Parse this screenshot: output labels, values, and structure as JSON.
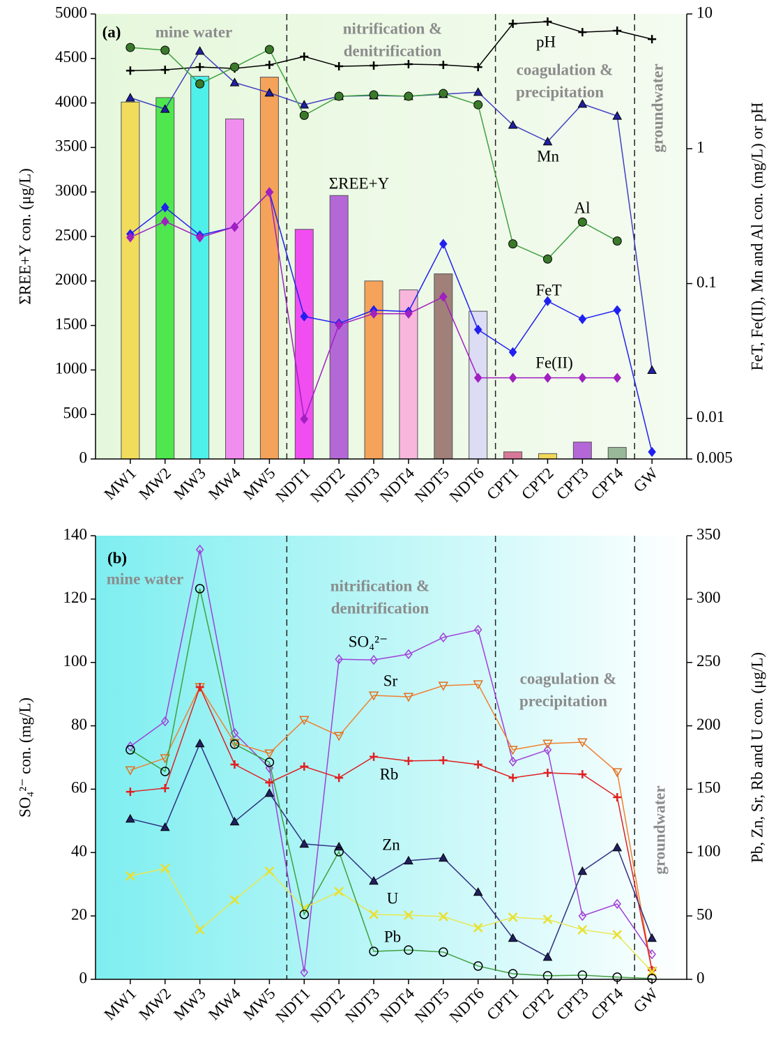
{
  "chart_data": [
    {
      "type": "bar",
      "panel_label": "(a)",
      "categories": [
        "MW1",
        "MW2",
        "MW3",
        "MW4",
        "MW5",
        "NDT1",
        "NDT2",
        "NDT3",
        "NDT4",
        "NDT5",
        "NDT6",
        "CPT1",
        "CPT2",
        "CPT3",
        "CPT4",
        "GW"
      ],
      "ylabel": "ΣREE+Y con. (μg/L)",
      "y2label": "FeT, Fe(II), Mn and Al con. (mg/L) or pH",
      "ylim": [
        0,
        5000
      ],
      "yticks": [
        0,
        500,
        1000,
        1500,
        2000,
        2500,
        3000,
        3500,
        4000,
        4500,
        5000
      ],
      "y2lim": [
        0.005,
        10
      ],
      "y2ticks": [
        0.005,
        0.01,
        0.1,
        1,
        10
      ],
      "y2scale": "log",
      "bars": {
        "name": "ΣREE+Y",
        "values": [
          4010,
          4060,
          4300,
          3820,
          4290,
          2580,
          2960,
          2000,
          1900,
          2080,
          1660,
          80,
          60,
          190,
          130,
          null
        ],
        "colors": [
          "#f2dc5c",
          "#4ee84e",
          "#4ef0ea",
          "#f08ef0",
          "#f5a35a",
          "#f04ef0",
          "#b468d8",
          "#f5a35a",
          "#f8b6dc",
          "#a08078",
          "#dcdcf4",
          "#d87898",
          "#f2d85a",
          "#b468d8",
          "#98b898",
          null
        ]
      },
      "series": [
        {
          "name": "pH",
          "color": "#000000",
          "marker": "plus",
          "marker_color": "#000000",
          "axis": "y2",
          "values": [
            3.8,
            3.85,
            4.04,
            3.94,
            4.19,
            4.83,
            4.09,
            4.14,
            4.24,
            4.19,
            4.04,
            8.46,
            8.77,
            7.33,
            7.51,
            6.5
          ]
        },
        {
          "name": "Mn",
          "color": "#4040c0",
          "marker": "triangle",
          "marker_color": "#2020a0",
          "axis": "y2",
          "values": [
            2.39,
            1.97,
            5.31,
            3.1,
            2.6,
            2.12,
            2.45,
            2.48,
            2.45,
            2.54,
            2.63,
            1.5,
            1.13,
            2.15,
            1.75,
            0.0228
          ]
        },
        {
          "name": "Al",
          "color": "#40a040",
          "marker": "circle",
          "marker_color": "#3a7a2a",
          "axis": "y2",
          "values": [
            5.64,
            5.38,
            3.03,
            4.04,
            5.45,
            1.77,
            2.45,
            2.51,
            2.45,
            2.57,
            2.12,
            0.197,
            0.152,
            0.286,
            0.207,
            null
          ]
        },
        {
          "name": "FeT",
          "color": "#2020f0",
          "marker": "diamond",
          "marker_color": "#2020f0",
          "axis": "y2",
          "values": [
            0.233,
            0.367,
            0.228,
            0.263,
            0.477,
            0.057,
            0.0507,
            0.0635,
            0.062,
            0.197,
            0.0455,
            0.031,
            0.0741,
            0.0545,
            0.0635,
            0.00564
          ]
        },
        {
          "name": "Fe(II)",
          "color": "#a020c0",
          "marker": "diamond",
          "marker_color": "#a020c0",
          "axis": "y2",
          "values": [
            0.22,
            0.289,
            0.22,
            0.263,
            0.477,
            0.00989,
            0.0494,
            0.0598,
            0.0598,
            0.0798,
            0.02,
            0.02,
            0.02,
            0.02,
            0.02,
            null
          ]
        }
      ],
      "regions": [
        [
          "mine water"
        ],
        [
          "nitrification &",
          "denitrification"
        ],
        [
          "coagulation &",
          "precipitation"
        ],
        [
          "groundwater"
        ]
      ]
    },
    {
      "type": "line",
      "panel_label": "(b)",
      "categories": [
        "MW1",
        "MW2",
        "MW3",
        "MW4",
        "MW5",
        "NDT1",
        "NDT2",
        "NDT3",
        "NDT4",
        "NDT5",
        "NDT6",
        "CPT1",
        "CPT2",
        "CPT3",
        "CPT4",
        "GW"
      ],
      "ylabel": "SO₄²⁻ con. (mg/L)",
      "y2label": "Pb, Zn, Sr, Rb and U con. (μg/L)",
      "ylim": [
        0,
        140
      ],
      "yticks": [
        0,
        20,
        40,
        60,
        80,
        100,
        120,
        140
      ],
      "y2lim": [
        0,
        350
      ],
      "y2ticks": [
        0,
        50,
        100,
        150,
        200,
        250,
        300,
        350
      ],
      "series": [
        {
          "name": "SO₄²⁻",
          "color": "#a040d8",
          "marker": "diamond",
          "marker_color": "#a040d8",
          "axis": "y",
          "values": [
            73.5,
            81.4,
            135.6,
            77.7,
            66.7,
            2.2,
            101,
            100.8,
            102.6,
            107.9,
            110.3,
            68.7,
            72.4,
            20,
            23.8,
            7.9
          ]
        },
        {
          "name": "Sr",
          "color": "#f08030",
          "marker": "triangle-down",
          "marker_color": "#e07020",
          "axis": "y2",
          "values": [
            165,
            174.5,
            230.6,
            186.6,
            178.3,
            204.7,
            192.1,
            224,
            222.9,
            231.7,
            232.8,
            181.1,
            186,
            187.1,
            163.5,
            6.6
          ]
        },
        {
          "name": "Rb",
          "color": "#e02020",
          "marker": "plus",
          "marker_color": "#e02020",
          "axis": "y2",
          "values": [
            148,
            150.8,
            230.6,
            169.5,
            155.2,
            167.9,
            159,
            175.6,
            172.3,
            172.8,
            169.5,
            159,
            162.9,
            161.8,
            143.6,
            7.2
          ]
        },
        {
          "name": "Zn",
          "color": "#303080",
          "marker": "triangle",
          "marker_color": "#202060",
          "axis": "y2",
          "values": [
            126.6,
            120,
            186,
            124.4,
            146.9,
            106.8,
            104.6,
            77.6,
            93.6,
            95.8,
            68.8,
            32.5,
            17.6,
            85.3,
            104,
            32.5
          ]
        },
        {
          "name": "U",
          "color": "#e8e850",
          "marker": "x",
          "marker_color": "#e8e030",
          "axis": "y2",
          "values": [
            81.5,
            87.5,
            39.1,
            62.7,
            85.3,
            56.1,
            69.3,
            51.2,
            50.6,
            49.5,
            40.7,
            49,
            47.3,
            39.1,
            35.2,
            6
          ]
        },
        {
          "name": "Pb",
          "color": "#40a040",
          "marker": "circle-open",
          "marker_color": "#000000",
          "axis": "y2",
          "values": [
            181.1,
            164,
            308.2,
            185.5,
            171.2,
            51.2,
            100.7,
            22,
            23.1,
            21.5,
            10.5,
            4.4,
            2.8,
            3.3,
            1.7,
            0.6
          ]
        }
      ],
      "regions": [
        [
          "mine water"
        ],
        [
          "nitrification &",
          "denitrification"
        ],
        [
          "coagulation &",
          "precipitation"
        ],
        [
          "groundwater"
        ]
      ]
    }
  ]
}
